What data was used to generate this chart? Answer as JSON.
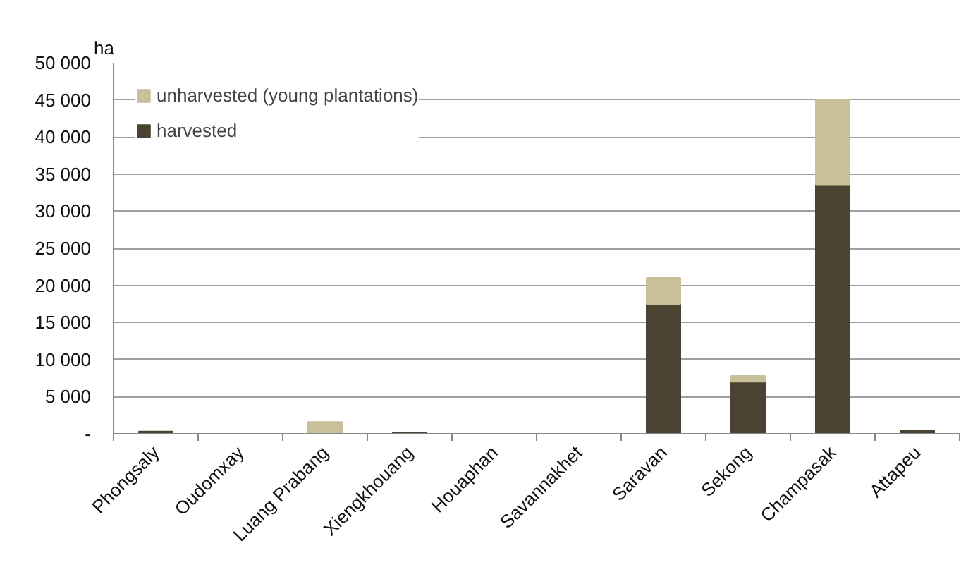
{
  "chart_data": {
    "type": "bar",
    "stacked": true,
    "ylabel": "ha",
    "categories": [
      "Phongsaly",
      "Oudomxay",
      "Luang Prabang",
      "Xiengkhouang",
      "Houaphan",
      "Savannakhet",
      "Saravan",
      "Sekong",
      "Champasak",
      "Attapeu"
    ],
    "series": [
      {
        "name": "harvested",
        "color": "#4b4332",
        "values": [
          300,
          0,
          0,
          200,
          0,
          0,
          17500,
          7000,
          33500,
          400
        ]
      },
      {
        "name": "unharvested (young plantations)",
        "color": "#c9bf9a",
        "values": [
          0,
          0,
          1600,
          0,
          0,
          0,
          3500,
          800,
          11500,
          0
        ]
      }
    ],
    "ylim": [
      0,
      50000
    ],
    "yticks": [
      {
        "value": 0,
        "label": "-"
      },
      {
        "value": 5000,
        "label": "5 000"
      },
      {
        "value": 10000,
        "label": "10 000"
      },
      {
        "value": 15000,
        "label": "15 000"
      },
      {
        "value": 20000,
        "label": "20 000"
      },
      {
        "value": 25000,
        "label": "25 000"
      },
      {
        "value": 30000,
        "label": "30 000"
      },
      {
        "value": 35000,
        "label": "35 000"
      },
      {
        "value": 40000,
        "label": "40 000"
      },
      {
        "value": 45000,
        "label": "45 000"
      },
      {
        "value": 50000,
        "label": "50 000"
      }
    ],
    "grid": "y",
    "legend": "top left"
  }
}
